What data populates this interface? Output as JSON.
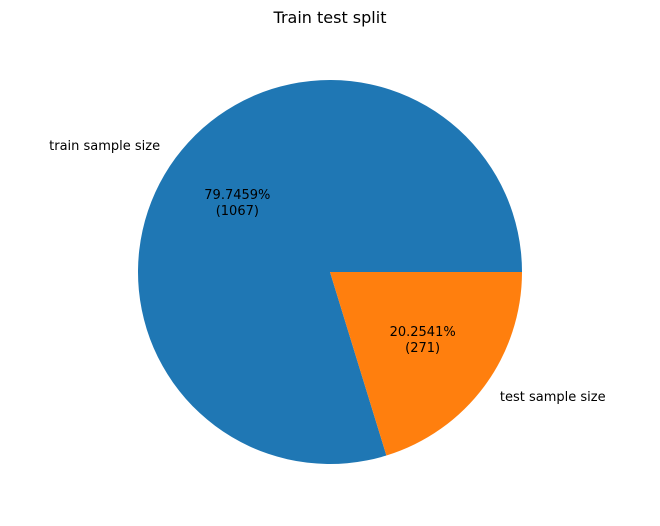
{
  "chart_data": {
    "type": "pie",
    "title": "Train test split",
    "slices": [
      {
        "label": "train sample size",
        "value": 1067,
        "percent_label": "79.7459%",
        "count_label": "(1067)",
        "color": "#1f77b4"
      },
      {
        "label": "test sample size",
        "value": 271,
        "percent_label": "20.2541%",
        "count_label": "(271)",
        "color": "#ff7f0e"
      }
    ],
    "start_angle_deg": 0,
    "direction": "counterclockwise"
  }
}
